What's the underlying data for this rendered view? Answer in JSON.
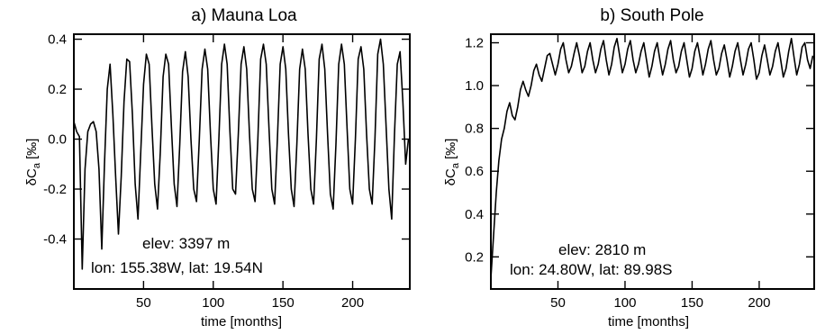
{
  "chart_data": [
    {
      "type": "line",
      "title": "a) Mauna Loa",
      "xlabel": "time [months]",
      "ylabel_main": "δC",
      "ylabel_sub": "a",
      "ylabel_unit": "[‰]",
      "xlim": [
        0,
        241
      ],
      "ylim": [
        -0.6,
        0.42
      ],
      "xticks": [
        50,
        100,
        150,
        200
      ],
      "yticks": [
        -0.4,
        -0.2,
        0.0,
        0.2,
        0.4
      ],
      "ytick_labels": [
        "-0.4",
        "-0.2",
        "0.0",
        "0.2",
        "0.4"
      ],
      "xtick_labels": [
        "50",
        "100",
        "150",
        "200"
      ],
      "annotations": [
        "elev: 3397 m",
        "lon: 155.38W, lat: 19.54N"
      ],
      "series": [
        {
          "x": [
            0,
            2,
            4,
            6,
            8,
            10,
            12,
            14,
            16,
            18,
            20,
            22,
            24,
            26,
            28,
            30,
            32,
            34,
            36,
            38,
            40,
            42,
            44,
            46,
            48,
            50,
            52,
            54,
            56,
            58,
            60,
            62,
            64,
            66,
            68,
            70,
            72,
            74,
            76,
            78,
            80,
            82,
            84,
            86,
            88,
            90,
            92,
            94,
            96,
            98,
            100,
            102,
            104,
            106,
            108,
            110,
            112,
            114,
            116,
            118,
            120,
            122,
            124,
            126,
            128,
            130,
            132,
            134,
            136,
            138,
            140,
            142,
            144,
            146,
            148,
            150,
            152,
            154,
            156,
            158,
            160,
            162,
            164,
            166,
            168,
            170,
            172,
            174,
            176,
            178,
            180,
            182,
            184,
            186,
            188,
            190,
            192,
            194,
            196,
            198,
            200,
            202,
            204,
            206,
            208,
            210,
            212,
            214,
            216,
            218,
            220,
            222,
            224,
            226,
            228,
            230,
            232,
            234,
            236,
            238,
            240
          ],
          "y": [
            0.07,
            0.03,
            0.01,
            -0.52,
            -0.12,
            0.03,
            0.06,
            0.07,
            0.03,
            -0.12,
            -0.44,
            -0.1,
            0.2,
            0.3,
            0.1,
            -0.15,
            -0.38,
            -0.15,
            0.15,
            0.32,
            0.31,
            0.1,
            -0.18,
            -0.32,
            -0.05,
            0.22,
            0.34,
            0.3,
            0.05,
            -0.18,
            -0.28,
            -0.05,
            0.25,
            0.34,
            0.3,
            0.05,
            -0.18,
            -0.27,
            -0.02,
            0.27,
            0.35,
            0.25,
            0.0,
            -0.2,
            -0.25,
            0.0,
            0.28,
            0.36,
            0.28,
            0.02,
            -0.2,
            -0.26,
            0.0,
            0.3,
            0.38,
            0.3,
            0.03,
            -0.2,
            -0.22,
            0.02,
            0.3,
            0.37,
            0.28,
            0.02,
            -0.2,
            -0.25,
            0.0,
            0.32,
            0.38,
            0.3,
            0.04,
            -0.2,
            -0.26,
            0.0,
            0.3,
            0.37,
            0.28,
            0.02,
            -0.2,
            -0.27,
            -0.02,
            0.28,
            0.36,
            0.28,
            0.02,
            -0.2,
            -0.26,
            0.0,
            0.32,
            0.38,
            0.28,
            0.02,
            -0.22,
            -0.28,
            -0.02,
            0.3,
            0.38,
            0.3,
            0.04,
            -0.2,
            -0.26,
            0.0,
            0.32,
            0.37,
            0.28,
            0.02,
            -0.2,
            -0.26,
            0.0,
            0.34,
            0.4,
            0.3,
            0.05,
            -0.2,
            -0.32,
            0.02,
            0.3,
            0.35,
            0.15,
            -0.1,
            0.0
          ]
        }
      ]
    },
    {
      "type": "line",
      "title": "b) South Pole",
      "xlabel": "time [months]",
      "ylabel_main": "δC",
      "ylabel_sub": "a",
      "ylabel_unit": "[‰]",
      "xlim": [
        0,
        241
      ],
      "ylim": [
        0.05,
        1.24
      ],
      "xticks": [
        50,
        100,
        150,
        200
      ],
      "yticks": [
        0.2,
        0.4,
        0.6,
        0.8,
        1.0,
        1.2
      ],
      "ytick_labels": [
        "0.2",
        "0.4",
        "0.6",
        "0.8",
        "1.0",
        "1.2"
      ],
      "xtick_labels": [
        "50",
        "100",
        "150",
        "200"
      ],
      "annotations": [
        "elev: 2810 m",
        "lon: 24.80W, lat: 89.98S"
      ],
      "series": [
        {
          "x": [
            0,
            2,
            4,
            6,
            8,
            10,
            12,
            14,
            16,
            18,
            20,
            22,
            24,
            26,
            28,
            30,
            32,
            34,
            36,
            38,
            40,
            42,
            44,
            46,
            48,
            50,
            52,
            54,
            56,
            58,
            60,
            62,
            64,
            66,
            68,
            70,
            72,
            74,
            76,
            78,
            80,
            82,
            84,
            86,
            88,
            90,
            92,
            94,
            96,
            98,
            100,
            102,
            104,
            106,
            108,
            110,
            112,
            114,
            116,
            118,
            120,
            122,
            124,
            126,
            128,
            130,
            132,
            134,
            136,
            138,
            140,
            142,
            144,
            146,
            148,
            150,
            152,
            154,
            156,
            158,
            160,
            162,
            164,
            166,
            168,
            170,
            172,
            174,
            176,
            178,
            180,
            182,
            184,
            186,
            188,
            190,
            192,
            194,
            196,
            198,
            200,
            202,
            204,
            206,
            208,
            210,
            212,
            214,
            216,
            218,
            220,
            222,
            224,
            226,
            228,
            230,
            232,
            234,
            236,
            238,
            240
          ],
          "y": [
            0.1,
            0.3,
            0.5,
            0.65,
            0.75,
            0.8,
            0.88,
            0.92,
            0.86,
            0.84,
            0.9,
            0.98,
            1.02,
            0.98,
            0.95,
            1.0,
            1.07,
            1.1,
            1.05,
            1.02,
            1.08,
            1.14,
            1.15,
            1.1,
            1.05,
            1.1,
            1.17,
            1.2,
            1.12,
            1.06,
            1.09,
            1.15,
            1.2,
            1.14,
            1.06,
            1.09,
            1.16,
            1.2,
            1.12,
            1.06,
            1.1,
            1.17,
            1.21,
            1.12,
            1.05,
            1.1,
            1.18,
            1.22,
            1.14,
            1.06,
            1.1,
            1.17,
            1.21,
            1.12,
            1.06,
            1.1,
            1.16,
            1.2,
            1.12,
            1.04,
            1.09,
            1.16,
            1.2,
            1.12,
            1.05,
            1.1,
            1.17,
            1.21,
            1.12,
            1.06,
            1.09,
            1.16,
            1.2,
            1.12,
            1.04,
            1.08,
            1.16,
            1.2,
            1.13,
            1.05,
            1.1,
            1.17,
            1.21,
            1.12,
            1.05,
            1.08,
            1.15,
            1.19,
            1.12,
            1.04,
            1.09,
            1.16,
            1.2,
            1.12,
            1.05,
            1.1,
            1.17,
            1.2,
            1.12,
            1.03,
            1.06,
            1.14,
            1.19,
            1.12,
            1.05,
            1.09,
            1.16,
            1.2,
            1.12,
            1.04,
            1.08,
            1.16,
            1.22,
            1.13,
            1.05,
            1.1,
            1.18,
            1.2,
            1.12,
            1.08,
            1.14
          ]
        }
      ]
    }
  ]
}
